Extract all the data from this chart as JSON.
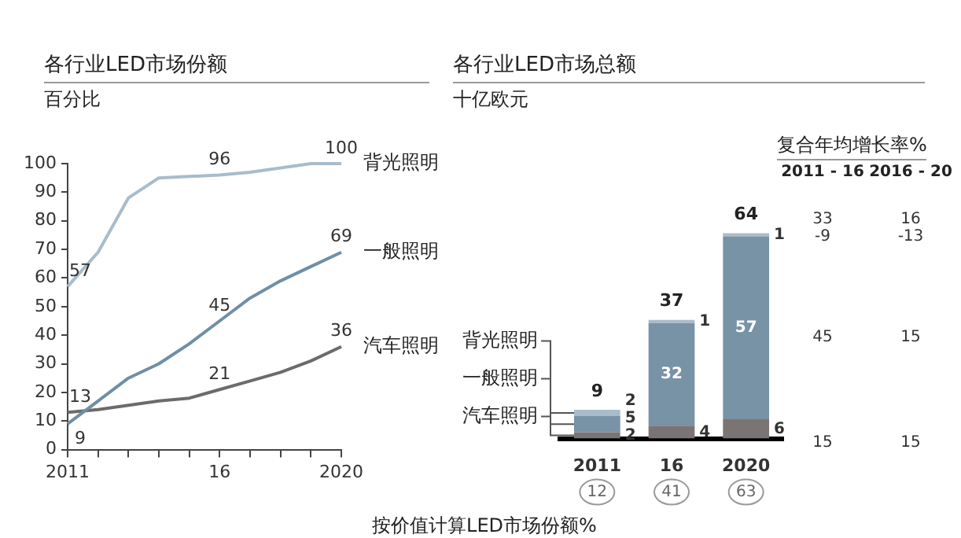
{
  "chart_data": [
    {
      "type": "line",
      "title": "各行业LED市场份额",
      "subtitle": "百分比",
      "x": [
        2011,
        2012,
        2013,
        2014,
        2015,
        2016,
        2017,
        2018,
        2019,
        2020
      ],
      "xlim": [
        2011,
        2020
      ],
      "xticks": [
        2011,
        {
          "value": 2012,
          "label": null
        },
        {
          "value": 2013,
          "label": null
        },
        {
          "value": 2014,
          "label": null
        },
        {
          "value": 2015,
          "label": null
        },
        {
          "value": 2016,
          "label": "16"
        },
        {
          "value": 2017,
          "label": null
        },
        {
          "value": 2018,
          "label": null
        },
        {
          "value": 2019,
          "label": null
        },
        2020
      ],
      "ylim": [
        0,
        100
      ],
      "yticks": [
        0,
        10,
        20,
        30,
        40,
        50,
        60,
        70,
        80,
        90,
        100
      ],
      "grid": false,
      "legend": false,
      "marker": "none",
      "series": [
        {
          "name": "背光照明",
          "color": "#a8bccb",
          "values": [
            57,
            69,
            88,
            95,
            95.5,
            96,
            97,
            98.5,
            100,
            100
          ],
          "value_labels": [
            "57",
            null,
            null,
            null,
            null,
            "96",
            null,
            null,
            null,
            "100"
          ]
        },
        {
          "name": "一般照明",
          "color": "#6f8fa6",
          "values": [
            9,
            17,
            25,
            30,
            37,
            45,
            53,
            59,
            64,
            69
          ],
          "value_labels": [
            "9",
            null,
            null,
            null,
            null,
            "45",
            null,
            null,
            null,
            "69"
          ]
        },
        {
          "name": "汽车照明",
          "color": "#6e6a6a",
          "values": [
            13,
            14,
            15.5,
            17,
            18,
            21,
            24,
            27,
            31,
            36
          ],
          "value_labels": [
            "13",
            null,
            null,
            null,
            null,
            "21",
            null,
            null,
            null,
            "36"
          ]
        }
      ]
    },
    {
      "type": "bar",
      "title": "各行业LED市场总额",
      "subtitle": "十亿欧元",
      "categories": [
        "2011",
        "16",
        "2020"
      ],
      "stacked": true,
      "data_labels": true,
      "totals": [
        "9",
        "37",
        "64"
      ],
      "tick_labels": "x",
      "grid": false,
      "legend": false,
      "series": [
        {
          "name": "汽车照明",
          "color": "#7a7474",
          "values": [
            2,
            4,
            6
          ]
        },
        {
          "name": "一般照明",
          "color": "#7892a6",
          "values": [
            5,
            32,
            57
          ]
        },
        {
          "name": "背光照明",
          "color": "#a9bccb",
          "values": [
            2,
            1,
            1
          ]
        }
      ],
      "annotations": [
        "复合年均增长率%",
        "2011 - 16",
        "2016 - 20",
        "33",
        "16",
        "-9",
        "-13",
        "45",
        "15",
        "15",
        "15",
        "12",
        "41",
        "63",
        "按价值计算LED市场份额%"
      ]
    }
  ]
}
